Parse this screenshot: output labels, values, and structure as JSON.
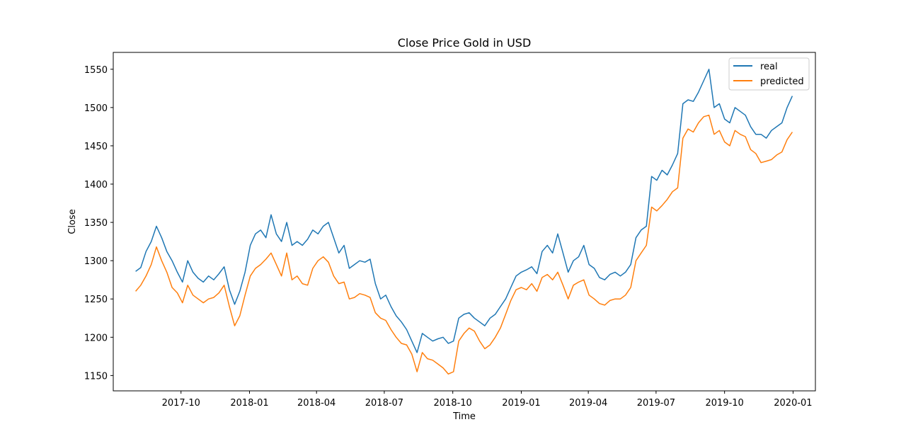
{
  "chart_data": {
    "type": "line",
    "title": "Close Price Gold in USD",
    "xlabel": "Time",
    "ylabel": "Close",
    "xlim": [
      "2017-07-02",
      "2020-01-31"
    ],
    "ylim": [
      1130,
      1572
    ],
    "x_ticks": [
      {
        "date": "2017-10-01",
        "label": "2017-10"
      },
      {
        "date": "2018-01-01",
        "label": "2018-01"
      },
      {
        "date": "2018-04-01",
        "label": "2018-04"
      },
      {
        "date": "2018-07-01",
        "label": "2018-07"
      },
      {
        "date": "2018-10-01",
        "label": "2018-10"
      },
      {
        "date": "2019-01-01",
        "label": "2019-01"
      },
      {
        "date": "2019-04-01",
        "label": "2019-04"
      },
      {
        "date": "2019-07-01",
        "label": "2019-07"
      },
      {
        "date": "2019-10-01",
        "label": "2019-10"
      },
      {
        "date": "2020-01-01",
        "label": "2020-01"
      }
    ],
    "y_ticks": [
      1150,
      1200,
      1250,
      1300,
      1350,
      1400,
      1450,
      1500,
      1550
    ],
    "legend_position": "top-right",
    "grid": false,
    "x": [
      "2017-08-01",
      "2017-08-08",
      "2017-08-15",
      "2017-08-22",
      "2017-08-29",
      "2017-09-05",
      "2017-09-12",
      "2017-09-19",
      "2017-09-26",
      "2017-10-03",
      "2017-10-10",
      "2017-10-17",
      "2017-10-24",
      "2017-10-31",
      "2017-11-07",
      "2017-11-14",
      "2017-11-21",
      "2017-11-28",
      "2017-12-05",
      "2017-12-12",
      "2017-12-19",
      "2017-12-26",
      "2018-01-02",
      "2018-01-09",
      "2018-01-16",
      "2018-01-23",
      "2018-01-30",
      "2018-02-06",
      "2018-02-13",
      "2018-02-20",
      "2018-02-27",
      "2018-03-06",
      "2018-03-13",
      "2018-03-20",
      "2018-03-27",
      "2018-04-03",
      "2018-04-10",
      "2018-04-17",
      "2018-04-24",
      "2018-05-01",
      "2018-05-08",
      "2018-05-15",
      "2018-05-22",
      "2018-05-29",
      "2018-06-05",
      "2018-06-12",
      "2018-06-19",
      "2018-06-26",
      "2018-07-03",
      "2018-07-10",
      "2018-07-17",
      "2018-07-24",
      "2018-07-31",
      "2018-08-07",
      "2018-08-14",
      "2018-08-21",
      "2018-08-28",
      "2018-09-04",
      "2018-09-11",
      "2018-09-18",
      "2018-09-25",
      "2018-10-02",
      "2018-10-09",
      "2018-10-16",
      "2018-10-23",
      "2018-10-30",
      "2018-11-06",
      "2018-11-13",
      "2018-11-20",
      "2018-11-27",
      "2018-12-04",
      "2018-12-11",
      "2018-12-18",
      "2018-12-25",
      "2019-01-01",
      "2019-01-08",
      "2019-01-15",
      "2019-01-22",
      "2019-01-29",
      "2019-02-05",
      "2019-02-12",
      "2019-02-19",
      "2019-02-26",
      "2019-03-05",
      "2019-03-12",
      "2019-03-19",
      "2019-03-26",
      "2019-04-02",
      "2019-04-09",
      "2019-04-16",
      "2019-04-23",
      "2019-04-30",
      "2019-05-07",
      "2019-05-14",
      "2019-05-21",
      "2019-05-28",
      "2019-06-04",
      "2019-06-11",
      "2019-06-18",
      "2019-06-25",
      "2019-07-02",
      "2019-07-09",
      "2019-07-16",
      "2019-07-23",
      "2019-07-30",
      "2019-08-06",
      "2019-08-13",
      "2019-08-20",
      "2019-08-27",
      "2019-09-03",
      "2019-09-10",
      "2019-09-17",
      "2019-09-24",
      "2019-10-01",
      "2019-10-08",
      "2019-10-15",
      "2019-10-22",
      "2019-10-29",
      "2019-11-05",
      "2019-11-12",
      "2019-11-19",
      "2019-11-26",
      "2019-12-03",
      "2019-12-10",
      "2019-12-17",
      "2019-12-24",
      "2019-12-31"
    ],
    "series": [
      {
        "name": "real",
        "color": "#1f77b4",
        "values": [
          1286,
          1291,
          1312,
          1325,
          1345,
          1330,
          1312,
          1300,
          1285,
          1272,
          1300,
          1285,
          1277,
          1272,
          1280,
          1275,
          1283,
          1292,
          1262,
          1243,
          1260,
          1285,
          1320,
          1335,
          1340,
          1330,
          1360,
          1335,
          1325,
          1350,
          1320,
          1325,
          1320,
          1328,
          1340,
          1335,
          1345,
          1350,
          1330,
          1310,
          1320,
          1290,
          1295,
          1300,
          1298,
          1302,
          1270,
          1250,
          1255,
          1240,
          1228,
          1220,
          1210,
          1195,
          1180,
          1205,
          1200,
          1195,
          1198,
          1200,
          1192,
          1195,
          1225,
          1230,
          1232,
          1225,
          1220,
          1215,
          1225,
          1230,
          1240,
          1250,
          1265,
          1280,
          1285,
          1288,
          1292,
          1283,
          1312,
          1320,
          1310,
          1335,
          1310,
          1285,
          1300,
          1305,
          1320,
          1295,
          1290,
          1278,
          1275,
          1282,
          1285,
          1280,
          1285,
          1295,
          1330,
          1340,
          1345,
          1410,
          1405,
          1418,
          1412,
          1425,
          1440,
          1505,
          1510,
          1508,
          1520,
          1535,
          1550,
          1500,
          1505,
          1485,
          1480,
          1500,
          1495,
          1490,
          1475,
          1465,
          1465,
          1460,
          1470,
          1475,
          1480,
          1500,
          1515
        ]
      },
      {
        "name": "predicted",
        "color": "#ff7f0e",
        "values": [
          1260,
          1268,
          1280,
          1295,
          1318,
          1300,
          1285,
          1265,
          1258,
          1245,
          1268,
          1255,
          1250,
          1245,
          1250,
          1252,
          1258,
          1268,
          1240,
          1215,
          1228,
          1255,
          1280,
          1290,
          1295,
          1302,
          1310,
          1295,
          1280,
          1310,
          1275,
          1280,
          1270,
          1268,
          1290,
          1300,
          1305,
          1298,
          1280,
          1270,
          1272,
          1250,
          1252,
          1257,
          1255,
          1252,
          1232,
          1225,
          1222,
          1210,
          1200,
          1192,
          1190,
          1178,
          1155,
          1180,
          1172,
          1170,
          1165,
          1160,
          1152,
          1155,
          1195,
          1205,
          1212,
          1208,
          1195,
          1185,
          1190,
          1200,
          1212,
          1230,
          1248,
          1262,
          1265,
          1262,
          1270,
          1260,
          1278,
          1282,
          1275,
          1285,
          1268,
          1250,
          1268,
          1272,
          1275,
          1255,
          1250,
          1244,
          1242,
          1248,
          1250,
          1250,
          1255,
          1265,
          1300,
          1310,
          1320,
          1370,
          1365,
          1372,
          1380,
          1390,
          1395,
          1460,
          1472,
          1468,
          1480,
          1488,
          1490,
          1465,
          1470,
          1455,
          1450,
          1470,
          1465,
          1462,
          1445,
          1440,
          1428,
          1430,
          1432,
          1438,
          1442,
          1458,
          1468
        ]
      }
    ]
  }
}
